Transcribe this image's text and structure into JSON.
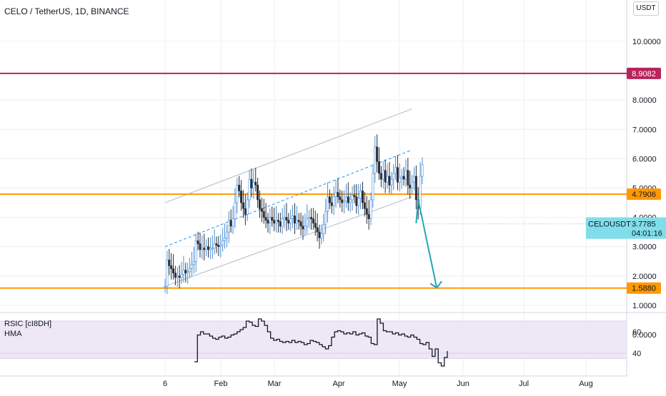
{
  "header": {
    "title": "CELO / TetherUS, 1D, BINANCE"
  },
  "currency_button": "USDT",
  "indicators": {
    "rsi_label": "RSIC [cI8DH]",
    "hma_label": "HMA"
  },
  "colors": {
    "resistance_top": "#b8245a",
    "level_orange": "#ff9800",
    "current_price": "#80deea",
    "channel": "#b2bac4",
    "midline": "#2196f3",
    "forecast_arrow": "#26a5b8",
    "candle": "#2a2e39",
    "candle_up": "#4a90d9",
    "rsi_band": "#ede7f6"
  },
  "chart_data": [
    {
      "type": "candlestick",
      "title": "CELO / TetherUS, 1D, BINANCE",
      "symbol": "CELOUSDT",
      "x_tick_labels": [
        "6",
        "Feb",
        "Mar",
        "Apr",
        "May",
        "Jun",
        "Jul",
        "Aug"
      ],
      "y_tick_labels": [
        "0.0000",
        "1.0000",
        "2.0000",
        "3.0000",
        "4.0000",
        "5.0000",
        "6.0000",
        "7.0000",
        "8.0000",
        "10.0000"
      ],
      "ylim": [
        0,
        10
      ],
      "grid": true,
      "horizontal_levels": [
        {
          "label": "8.9082",
          "value": 8.9082,
          "color": "resistance_top"
        },
        {
          "label": "4.7906",
          "value": 4.7906,
          "color": "level_orange"
        },
        {
          "label": "1.5880",
          "value": 1.588,
          "color": "level_orange"
        }
      ],
      "current_price": {
        "symbol": "CELOUSDT",
        "label": "3.7785",
        "value": 3.7785,
        "countdown": "04:01:16"
      },
      "series": [
        {
          "kind": "price-candles",
          "days": [
            0,
            1,
            2,
            3,
            4,
            5,
            6,
            7,
            8,
            9,
            10,
            11,
            12,
            13,
            14,
            15,
            16,
            17,
            18,
            19,
            20,
            21,
            22,
            23,
            24,
            25,
            26,
            27,
            28,
            29,
            30,
            31,
            32,
            33,
            34,
            35,
            36,
            37,
            38,
            39,
            40,
            41,
            42,
            43,
            44,
            45,
            46,
            47,
            48,
            49,
            50,
            51,
            52,
            53,
            54,
            55,
            56,
            57,
            58,
            59,
            60,
            61,
            62,
            63,
            64,
            65,
            66,
            67,
            68,
            69,
            70,
            71,
            72,
            73,
            74,
            75,
            76,
            77,
            78,
            79,
            80,
            81,
            82,
            83,
            84,
            85,
            86,
            87,
            88,
            89,
            90,
            91,
            92,
            93,
            94,
            95,
            96,
            97,
            98,
            99,
            100,
            101,
            102,
            103,
            104,
            105,
            106,
            107,
            108,
            109,
            110,
            111,
            112,
            113,
            114,
            115,
            116,
            117,
            118,
            119,
            120,
            121,
            122,
            123,
            124,
            125,
            126,
            127,
            128,
            129,
            130,
            131,
            132,
            133,
            134,
            135,
            136,
            137,
            138,
            139,
            140,
            141
          ],
          "close": [
            1.65,
            2.55,
            2.35,
            2.25,
            2.1,
            1.95,
            2.0,
            1.95,
            2.05,
            2.2,
            2.1,
            2.15,
            2.25,
            2.4,
            2.5,
            3.2,
            3.1,
            2.9,
            2.95,
            2.9,
            3.0,
            2.9,
            2.95,
            2.95,
            3.1,
            3.05,
            3.0,
            3.05,
            3.2,
            3.3,
            3.5,
            3.9,
            3.7,
            3.95,
            4.5,
            5.1,
            4.9,
            4.5,
            4.3,
            4.1,
            4.6,
            5.3,
            5.0,
            5.2,
            5.1,
            4.6,
            4.3,
            4.2,
            4.0,
            3.9,
            3.8,
            4.0,
            3.9,
            3.8,
            3.9,
            3.85,
            3.7,
            3.95,
            4.0,
            3.9,
            3.8,
            3.95,
            4.05,
            3.8,
            3.9,
            3.85,
            3.7,
            3.6,
            3.7,
            3.95,
            4.0,
            3.95,
            3.8,
            3.65,
            3.5,
            3.3,
            3.45,
            3.75,
            4.2,
            4.7,
            4.5,
            4.4,
            4.7,
            4.85,
            4.7,
            4.6,
            4.5,
            4.55,
            4.7,
            4.5,
            4.6,
            4.75,
            4.7,
            4.4,
            4.65,
            4.9,
            4.5,
            4.3,
            4.1,
            3.95,
            4.6,
            5.5,
            6.4,
            5.9,
            5.5,
            5.3,
            5.6,
            5.2,
            5.4,
            5.1,
            5.3,
            5.5,
            5.7,
            5.2,
            5.35,
            5.4,
            5.3,
            5.6,
            5.1,
            5.0,
            5.2,
            5.4,
            4.6,
            4.3,
            5.4,
            5.8,
            4.3,
            4.0,
            3.8,
            3.6,
            3.3,
            2.9,
            2.7,
            3.1,
            3.7,
            3.7783,
            3.7785,
            3.7785,
            3.7785,
            3.7785,
            3.7785,
            3.7785
          ],
          "note": "daily closes, 6 Jan – 26 May (forecast days beyond last candle repeat last close and are not drawn)"
        },
        {
          "kind": "rsi",
          "y_tick_labels": [
            "40",
            "60"
          ],
          "ylim": [
            30,
            75
          ],
          "band": [
            35,
            70
          ],
          "values": [
            32,
            57,
            60,
            58,
            58,
            56,
            54,
            53,
            55,
            56,
            54,
            55,
            57,
            58,
            60,
            62,
            64,
            70,
            69,
            66,
            65,
            72,
            70,
            66,
            60,
            54,
            52,
            53,
            51,
            50,
            51,
            50,
            52,
            50,
            51,
            50,
            48,
            49,
            52,
            51,
            50,
            48,
            46,
            44,
            47,
            55,
            60,
            61,
            60,
            58,
            59,
            58,
            60,
            57,
            58,
            59,
            56,
            55,
            49,
            48,
            72,
            68,
            61,
            60,
            60,
            58,
            59,
            57,
            58,
            56,
            55,
            57,
            55,
            53,
            49,
            48,
            50,
            44,
            37,
            44,
            31,
            28,
            36,
            42
          ]
        }
      ],
      "channel": {
        "upper": [
          [
            0,
            4.5
          ],
          [
            120,
            7.7
          ]
        ],
        "mid": [
          [
            0,
            3.0
          ],
          [
            120,
            6.3
          ]
        ],
        "lower": [
          [
            0,
            1.65
          ],
          [
            120,
            4.7
          ]
        ]
      },
      "forecast_path": [
        [
          122,
          3.8
        ],
        [
          123,
          4.6
        ],
        [
          132,
          1.6
        ]
      ]
    }
  ]
}
